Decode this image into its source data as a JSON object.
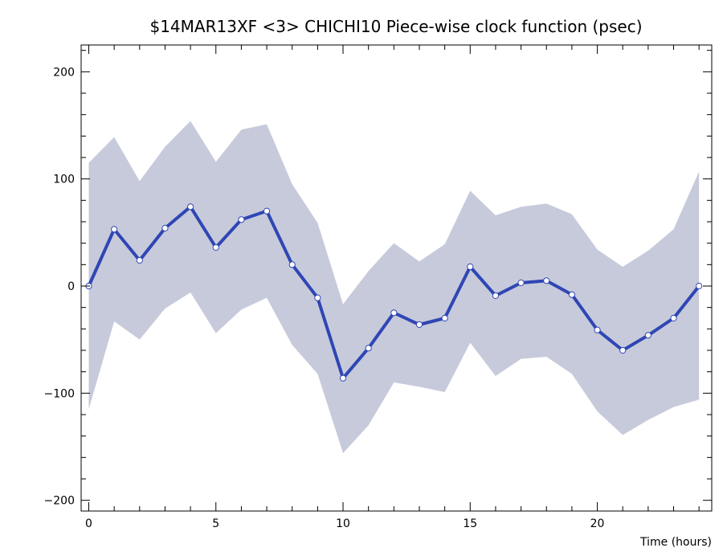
{
  "chart_data": {
    "type": "line",
    "title": "$14MAR13XF <3>  CHICHI10  Piece-wise clock function (psec)",
    "xlabel": "Time (hours)",
    "ylabel": "",
    "xlim": [
      -0.3,
      24.5
    ],
    "ylim": [
      -210,
      225
    ],
    "grid": false,
    "x_ticks": [
      0,
      5,
      10,
      15,
      20
    ],
    "x_tick_labels": [
      "0",
      "5",
      "10",
      "15",
      "20"
    ],
    "y_ticks": [
      200,
      100,
      0,
      -100,
      -200
    ],
    "y_tick_labels": [
      "200",
      "100",
      "0",
      "−100",
      "−200"
    ],
    "x": [
      0,
      1,
      2,
      3,
      4,
      5,
      6,
      7,
      8,
      9,
      10,
      11,
      12,
      13,
      14,
      15,
      16,
      17,
      18,
      19,
      20,
      21,
      22,
      23,
      24
    ],
    "series": [
      {
        "values": [
          0,
          53,
          24,
          54,
          74,
          36,
          62,
          70,
          20,
          -11,
          -86,
          -58,
          -25,
          -36,
          -30,
          18,
          -9,
          3,
          5,
          -8,
          -41,
          -60,
          -46,
          -30,
          0
        ]
      }
    ],
    "band_upper": [
      115,
      139,
      98,
      130,
      154,
      116,
      146,
      151,
      95,
      59,
      -17,
      14,
      40,
      23,
      39,
      89,
      66,
      74,
      77,
      67,
      34,
      18,
      33,
      53,
      107
    ],
    "band_lower": [
      -115,
      -33,
      -50,
      -21,
      -6,
      -44,
      -22,
      -11,
      -55,
      -82,
      -156,
      -130,
      -90,
      -94,
      -99,
      -53,
      -84,
      -68,
      -66,
      -82,
      -117,
      -139,
      -125,
      -113,
      -106
    ],
    "colors": {
      "line": "#2f46b4",
      "band": "#c7cadb",
      "marker_fill": "#ffffff",
      "marker_edge": "#2f46b4"
    }
  }
}
